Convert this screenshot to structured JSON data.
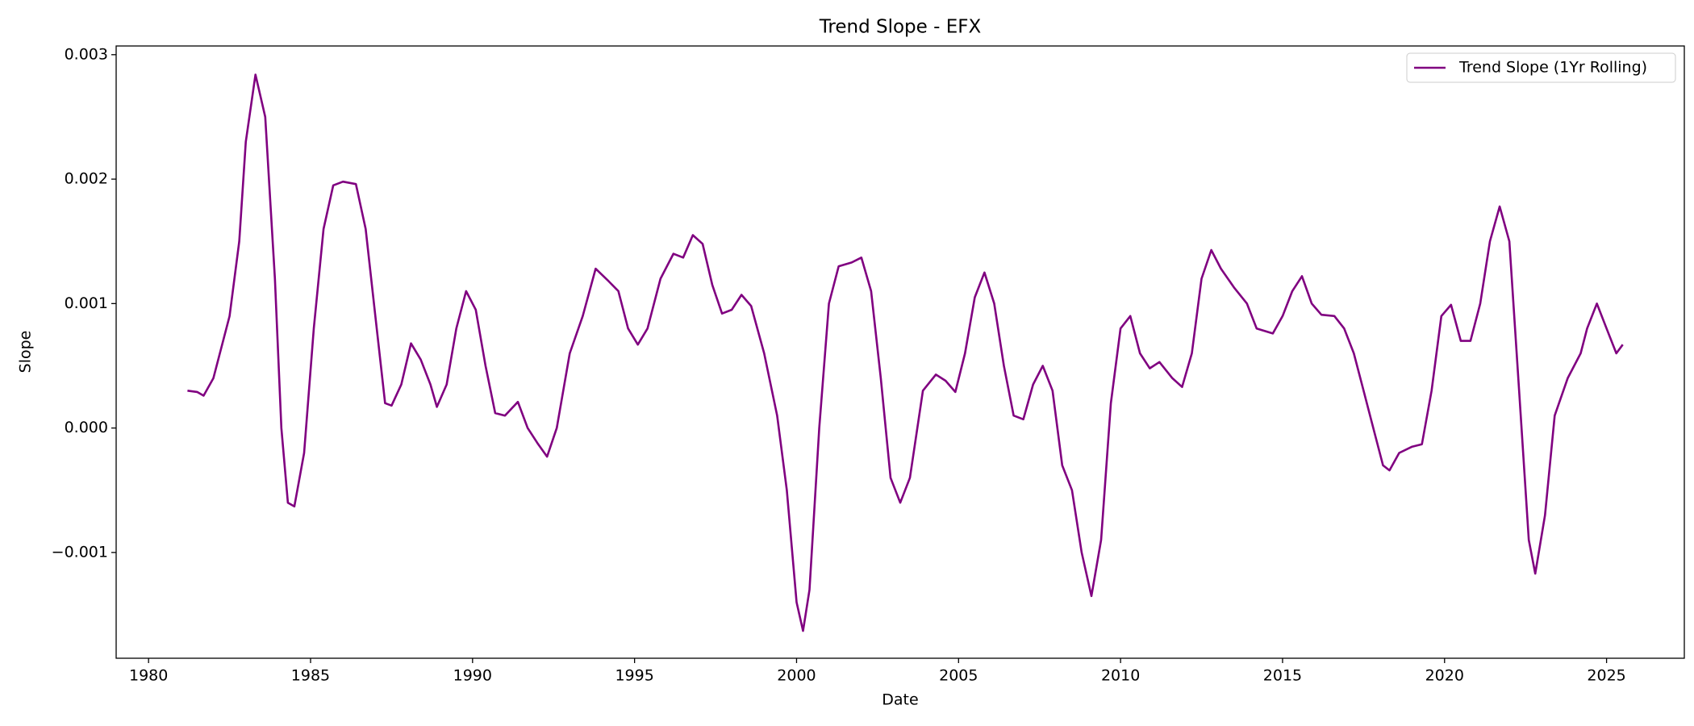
{
  "chart_data": {
    "type": "line",
    "title": "Trend Slope - EFX",
    "x_label": "Date",
    "y_label": "Slope",
    "x": [
      1981.2,
      1981.5,
      1981.7,
      1982.0,
      1982.5,
      1982.8,
      1983.0,
      1983.3,
      1983.6,
      1983.9,
      1984.1,
      1984.3,
      1984.5,
      1984.8,
      1985.1,
      1985.4,
      1985.7,
      1986.0,
      1986.4,
      1986.7,
      1987.0,
      1987.3,
      1987.5,
      1987.8,
      1988.1,
      1988.4,
      1988.7,
      1988.9,
      1989.2,
      1989.5,
      1989.8,
      1990.1,
      1990.4,
      1990.7,
      1991.0,
      1991.4,
      1991.7,
      1992.0,
      1992.3,
      1992.6,
      1993.0,
      1993.4,
      1993.8,
      1994.2,
      1994.5,
      1994.8,
      1995.1,
      1995.4,
      1995.8,
      1996.2,
      1996.5,
      1996.8,
      1997.1,
      1997.4,
      1997.7,
      1998.0,
      1998.3,
      1998.6,
      1999.0,
      1999.4,
      1999.7,
      2000.0,
      2000.2,
      2000.4,
      2000.7,
      2001.0,
      2001.3,
      2001.7,
      2002.0,
      2002.3,
      2002.6,
      2002.9,
      2003.2,
      2003.5,
      2003.9,
      2004.3,
      2004.6,
      2004.9,
      2005.2,
      2005.5,
      2005.8,
      2006.1,
      2006.4,
      2006.7,
      2007.0,
      2007.3,
      2007.6,
      2007.9,
      2008.2,
      2008.5,
      2008.8,
      2009.1,
      2009.4,
      2009.7,
      2010.0,
      2010.3,
      2010.6,
      2010.9,
      2011.2,
      2011.6,
      2011.9,
      2012.2,
      2012.5,
      2012.8,
      2013.1,
      2013.5,
      2013.9,
      2014.2,
      2014.7,
      2015.0,
      2015.3,
      2015.6,
      2015.9,
      2016.2,
      2016.6,
      2016.9,
      2017.2,
      2017.5,
      2017.8,
      2018.1,
      2018.3,
      2018.6,
      2019.0,
      2019.3,
      2019.6,
      2019.9,
      2020.2,
      2020.5,
      2020.8,
      2021.1,
      2021.4,
      2021.7,
      2022.0,
      2022.3,
      2022.6,
      2022.8,
      2023.1,
      2023.4,
      2023.8,
      2024.2,
      2024.4,
      2024.7,
      2025.0,
      2025.3,
      2025.5
    ],
    "series": [
      {
        "name": "Trend Slope (1Yr Rolling)",
        "color": "#800080",
        "values": [
          0.0003,
          0.00029,
          0.00026,
          0.0004,
          0.0009,
          0.0015,
          0.0023,
          0.00284,
          0.0025,
          0.0012,
          0.0,
          -0.0006,
          -0.00063,
          -0.0002,
          0.0008,
          0.0016,
          0.00195,
          0.00198,
          0.00196,
          0.0016,
          0.0009,
          0.0002,
          0.00018,
          0.00035,
          0.00068,
          0.00055,
          0.00035,
          0.00017,
          0.00035,
          0.0008,
          0.0011,
          0.00095,
          0.0005,
          0.00012,
          0.0001,
          0.00021,
          0.0,
          -0.00012,
          -0.00023,
          0.0,
          0.0006,
          0.0009,
          0.00128,
          0.00118,
          0.0011,
          0.0008,
          0.00067,
          0.0008,
          0.0012,
          0.0014,
          0.00137,
          0.00155,
          0.00148,
          0.00115,
          0.00092,
          0.00095,
          0.00107,
          0.00098,
          0.0006,
          0.0001,
          -0.0005,
          -0.0014,
          -0.00163,
          -0.0013,
          0.0,
          0.001,
          0.0013,
          0.00133,
          0.00137,
          0.0011,
          0.0004,
          -0.0004,
          -0.0006,
          -0.0004,
          0.0003,
          0.00043,
          0.00038,
          0.00029,
          0.0006,
          0.00105,
          0.00125,
          0.001,
          0.0005,
          0.0001,
          7e-05,
          0.00035,
          0.0005,
          0.0003,
          -0.0003,
          -0.0005,
          -0.001,
          -0.00135,
          -0.0009,
          0.0002,
          0.0008,
          0.0009,
          0.0006,
          0.00048,
          0.00053,
          0.0004,
          0.00033,
          0.0006,
          0.0012,
          0.00143,
          0.00128,
          0.00113,
          0.001,
          0.0008,
          0.00076,
          0.0009,
          0.0011,
          0.00122,
          0.001,
          0.00091,
          0.0009,
          0.0008,
          0.0006,
          0.0003,
          0.0,
          -0.0003,
          -0.00034,
          -0.0002,
          -0.00015,
          -0.00013,
          0.0003,
          0.0009,
          0.00099,
          0.0007,
          0.0007,
          0.001,
          0.0015,
          0.00178,
          0.0015,
          0.0003,
          -0.0009,
          -0.00117,
          -0.0007,
          0.0001,
          0.0004,
          0.0006,
          0.0008,
          0.001,
          0.0008,
          0.0006,
          0.00067
        ]
      }
    ],
    "xlim": [
      1979.0,
      2027.4
    ],
    "xticks": [
      1980,
      1985,
      1990,
      1995,
      2000,
      2005,
      2010,
      2015,
      2020,
      2025
    ],
    "ylim": [
      -0.00185,
      0.00307
    ],
    "yticks": [
      {
        "value": -0.001,
        "label": "−0.001"
      },
      {
        "value": 0,
        "label": "0.000"
      },
      0.001,
      0.002,
      0.003
    ],
    "grid": false,
    "legend": "upper right"
  }
}
